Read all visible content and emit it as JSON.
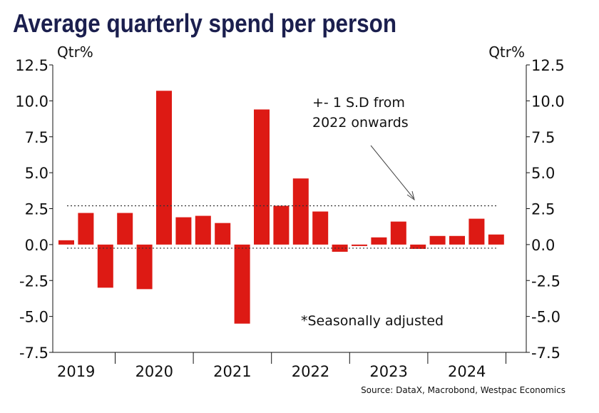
{
  "chart_data": {
    "type": "bar",
    "title": "Average quarterly spend per person",
    "y_axis_label": "Qtr%",
    "y2_axis_label": "Qtr%",
    "annotation": "+- 1 S.D from\n2022 onwards",
    "note": "*Seasonally adjusted",
    "source": "Source: DataX, Macrobond, Westpac Economics",
    "year_labels": [
      "2019",
      "2020",
      "2021",
      "2022",
      "2023",
      "2024"
    ],
    "values": [
      0.3,
      2.2,
      -3.0,
      2.2,
      -3.1,
      10.7,
      1.9,
      2.0,
      1.5,
      -5.5,
      9.4,
      2.7,
      4.6,
      2.3,
      -0.5,
      -0.1,
      0.5,
      1.6,
      -0.3,
      0.6,
      0.6,
      1.8,
      0.7
    ],
    "color": "#dd1a14",
    "std_lines": [
      2.7,
      -0.25
    ],
    "ylim": [
      -7.5,
      12.5
    ],
    "yticks": [
      {
        "value": 12.5,
        "label": "12.5"
      },
      {
        "value": 10,
        "label": "10.0"
      },
      7.5,
      {
        "value": 5,
        "label": "5.0"
      },
      2.5,
      {
        "value": 0,
        "label": "0.0"
      },
      -2.5,
      {
        "value": -5,
        "label": "-5.0"
      },
      -7.5
    ],
    "y2lim": [
      -7.5,
      12.5
    ],
    "y2ticks": [
      {
        "value": 12.5,
        "label": "12.5"
      },
      {
        "value": 10,
        "label": "10.0"
      },
      7.5,
      {
        "value": 5,
        "label": "5.0"
      },
      2.5,
      {
        "value": 0,
        "label": "0.0"
      },
      -2.5,
      {
        "value": -5,
        "label": "-5.0"
      },
      -7.5
    ]
  }
}
